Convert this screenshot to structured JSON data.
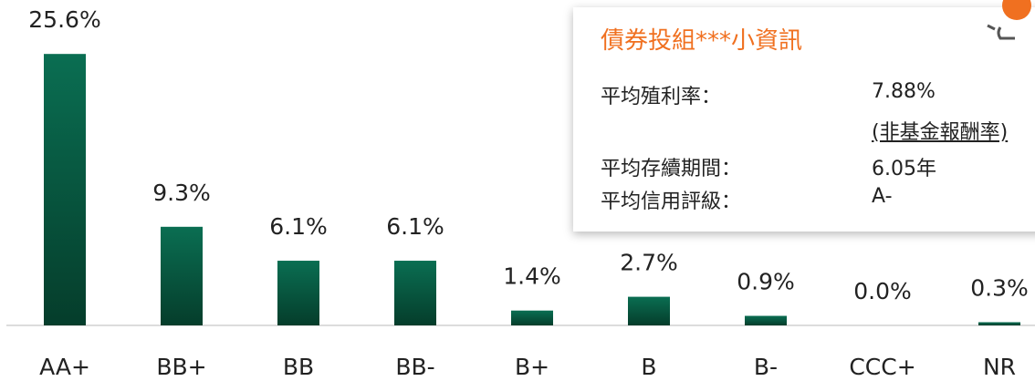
{
  "chart_data": {
    "type": "bar",
    "categories": [
      "AA+",
      "BB+",
      "BB",
      "BB-",
      "B+",
      "B",
      "B-",
      "CCC+",
      "NR"
    ],
    "values": [
      25.6,
      9.3,
      6.1,
      6.1,
      1.4,
      2.7,
      0.9,
      0.0,
      0.3
    ],
    "value_labels": [
      "25.6%",
      "9.3%",
      "6.1%",
      "6.1%",
      "1.4%",
      "2.7%",
      "0.9%",
      "0.0%",
      "0.3%"
    ],
    "color": "#0a6e52",
    "ylim": [
      0,
      30
    ]
  },
  "info_box": {
    "title": "債券投組***小資訊",
    "rows": [
      {
        "label": "平均殖利率：",
        "value": "7.88%",
        "note": "(非基金報酬率)"
      },
      {
        "label": "平均存續期間：",
        "value": "6.05年"
      },
      {
        "label": "平均信用評級：",
        "value": "A-"
      }
    ]
  }
}
